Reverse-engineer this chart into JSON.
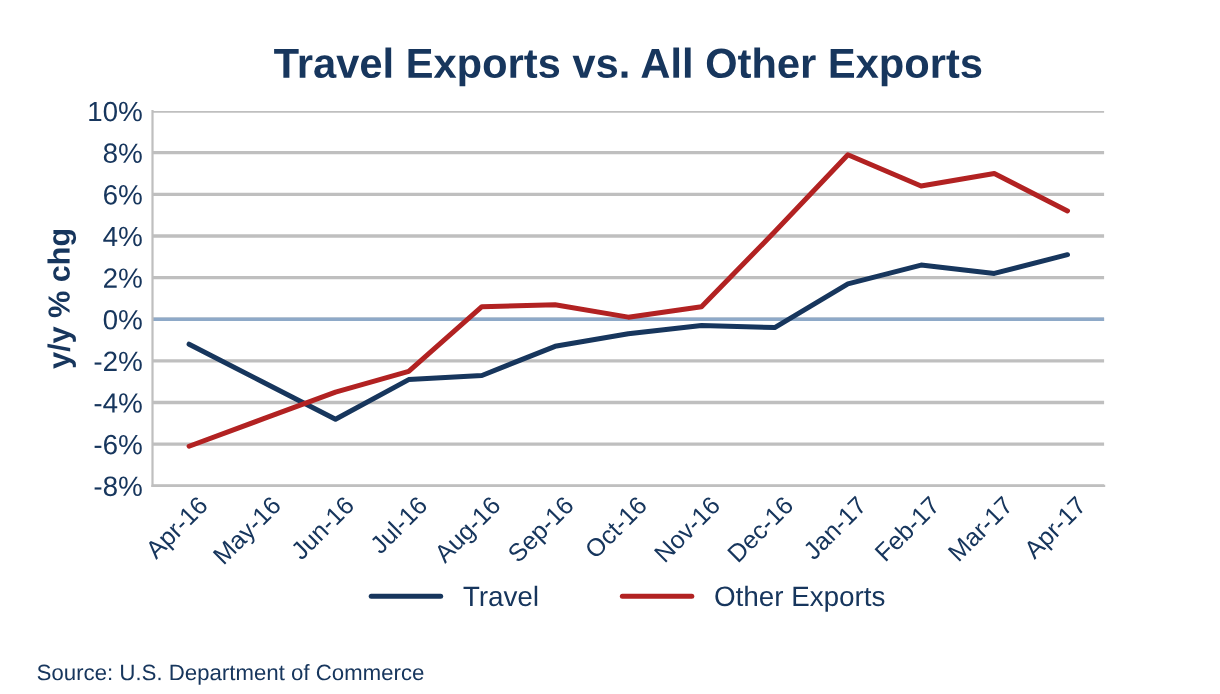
{
  "chart_data": {
    "type": "line",
    "title": "Travel Exports vs. All Other Exports",
    "ylabel": "y/y % chg",
    "categories": [
      "Apr-16",
      "May-16",
      "Jun-16",
      "Jul-16",
      "Aug-16",
      "Sep-16",
      "Oct-16",
      "Nov-16",
      "Dec-16",
      "Jan-17",
      "Feb-17",
      "Mar-17",
      "Apr-17"
    ],
    "series": [
      {
        "name": "Travel",
        "color": "#17365d",
        "values": [
          -1.2,
          -3.0,
          -4.8,
          -2.9,
          -2.7,
          -1.3,
          -0.7,
          -0.3,
          -0.4,
          1.7,
          2.6,
          2.2,
          3.1
        ]
      },
      {
        "name": "Other Exports",
        "color": "#b22222",
        "values": [
          -6.1,
          -4.8,
          -3.5,
          -2.5,
          0.6,
          0.7,
          0.1,
          0.6,
          4.2,
          7.9,
          6.4,
          7.0,
          5.2
        ]
      }
    ],
    "ylim": [
      -8,
      10
    ],
    "yticks": [
      {
        "value": -8,
        "label": "-8%"
      },
      {
        "value": -6,
        "label": "-6%"
      },
      {
        "value": -4,
        "label": "-4%"
      },
      {
        "value": -2,
        "label": "-2%"
      },
      {
        "value": 0,
        "label": "0%"
      },
      {
        "value": 2,
        "label": "2%"
      },
      {
        "value": 4,
        "label": "4%"
      },
      {
        "value": 6,
        "label": "6%"
      },
      {
        "value": 8,
        "label": "8%"
      },
      {
        "value": 10,
        "label": "10%"
      }
    ],
    "ref_lines": [
      {
        "axis": "y",
        "value": 0,
        "color": "#8ea9c8"
      }
    ],
    "grid": "y",
    "legend": "bottom",
    "marker": "none",
    "line_style": "solid",
    "annotations": [
      "Source: U.S. Department of Commerce"
    ]
  }
}
